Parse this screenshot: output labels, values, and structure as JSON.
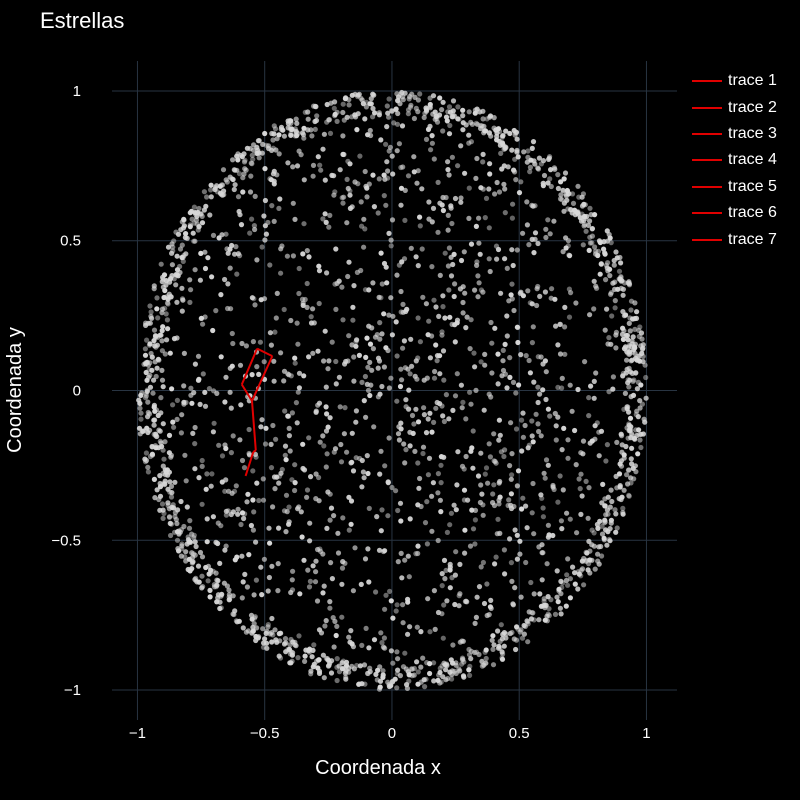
{
  "chart_data": {
    "type": "scatter",
    "title": "Estrellas",
    "xlabel": "Coordenada x",
    "ylabel": "Coordenada y",
    "xlim": [
      -1.1,
      1.12
    ],
    "ylim": [
      -1.1,
      1.1
    ],
    "xticks": [
      -1,
      -0.5,
      0,
      0.5,
      1
    ],
    "xtick_labels": [
      "−1",
      "−0.5",
      "0",
      "0.5",
      "1"
    ],
    "yticks": [
      -1,
      -0.5,
      0,
      0.5,
      1
    ],
    "ytick_labels": [
      "−1",
      "−0.5",
      "0",
      "0.5",
      "1"
    ],
    "grid": true,
    "legend_position": "top-right",
    "background_color": "#000000",
    "grid_color": "#283442",
    "star_color": "#d8d8d8",
    "line_color": "#e00000",
    "stars": {
      "shape": "disk",
      "radius": 1.0,
      "count": 2600,
      "edge_density": "high"
    },
    "series": [
      {
        "name": "trace 1",
        "x": [
          -0.59,
          -0.53
        ],
        "y": [
          0.02,
          0.14
        ]
      },
      {
        "name": "trace 2",
        "x": [
          -0.53,
          -0.47
        ],
        "y": [
          0.14,
          0.115
        ]
      },
      {
        "name": "trace 3",
        "x": [
          -0.47,
          -0.55
        ],
        "y": [
          0.115,
          -0.035
        ]
      },
      {
        "name": "trace 4",
        "x": [
          -0.55,
          -0.59
        ],
        "y": [
          -0.035,
          0.02
        ]
      },
      {
        "name": "trace 5",
        "x": [
          -0.55,
          -0.535
        ],
        "y": [
          -0.035,
          -0.2
        ]
      },
      {
        "name": "trace 6",
        "x": [
          -0.535,
          -0.545
        ],
        "y": [
          -0.2,
          -0.205
        ]
      },
      {
        "name": "trace 7",
        "x": [
          -0.545,
          -0.575
        ],
        "y": [
          -0.205,
          -0.285
        ]
      }
    ]
  }
}
